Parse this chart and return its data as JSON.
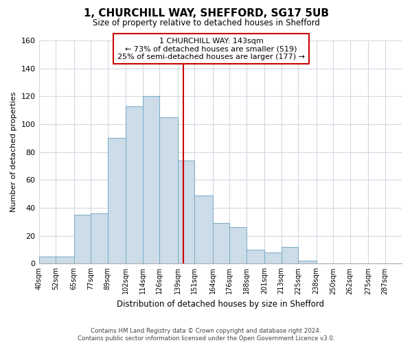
{
  "title": "1, CHURCHILL WAY, SHEFFORD, SG17 5UB",
  "subtitle": "Size of property relative to detached houses in Shefford",
  "xlabel": "Distribution of detached houses by size in Shefford",
  "ylabel": "Number of detached properties",
  "footer_line1": "Contains HM Land Registry data © Crown copyright and database right 2024.",
  "footer_line2": "Contains public sector information licensed under the Open Government Licence v3.0.",
  "bin_labels": [
    "40sqm",
    "52sqm",
    "65sqm",
    "77sqm",
    "89sqm",
    "102sqm",
    "114sqm",
    "126sqm",
    "139sqm",
    "151sqm",
    "164sqm",
    "176sqm",
    "188sqm",
    "201sqm",
    "213sqm",
    "225sqm",
    "238sqm",
    "250sqm",
    "262sqm",
    "275sqm",
    "287sqm"
  ],
  "bin_edges": [
    40,
    52,
    65,
    77,
    89,
    102,
    114,
    126,
    139,
    151,
    164,
    176,
    188,
    201,
    213,
    225,
    238,
    250,
    262,
    275,
    287
  ],
  "bar_heights": [
    5,
    5,
    35,
    36,
    90,
    113,
    120,
    105,
    74,
    49,
    29,
    26,
    10,
    8,
    12,
    2,
    0,
    0,
    0,
    0
  ],
  "bar_color": "#ccdce8",
  "bar_edgecolor": "#7aaac8",
  "property_value": 143,
  "vline_color": "#cc0000",
  "annotation_title": "1 CHURCHILL WAY: 143sqm",
  "annotation_line1": "← 73% of detached houses are smaller (519)",
  "annotation_line2": "25% of semi-detached houses are larger (177) →",
  "annotation_box_edgecolor": "#cc0000",
  "ylim": [
    0,
    160
  ],
  "yticks": [
    0,
    20,
    40,
    60,
    80,
    100,
    120,
    140,
    160
  ],
  "grid_color": "#d0d8e0",
  "background_color": "#ffffff"
}
